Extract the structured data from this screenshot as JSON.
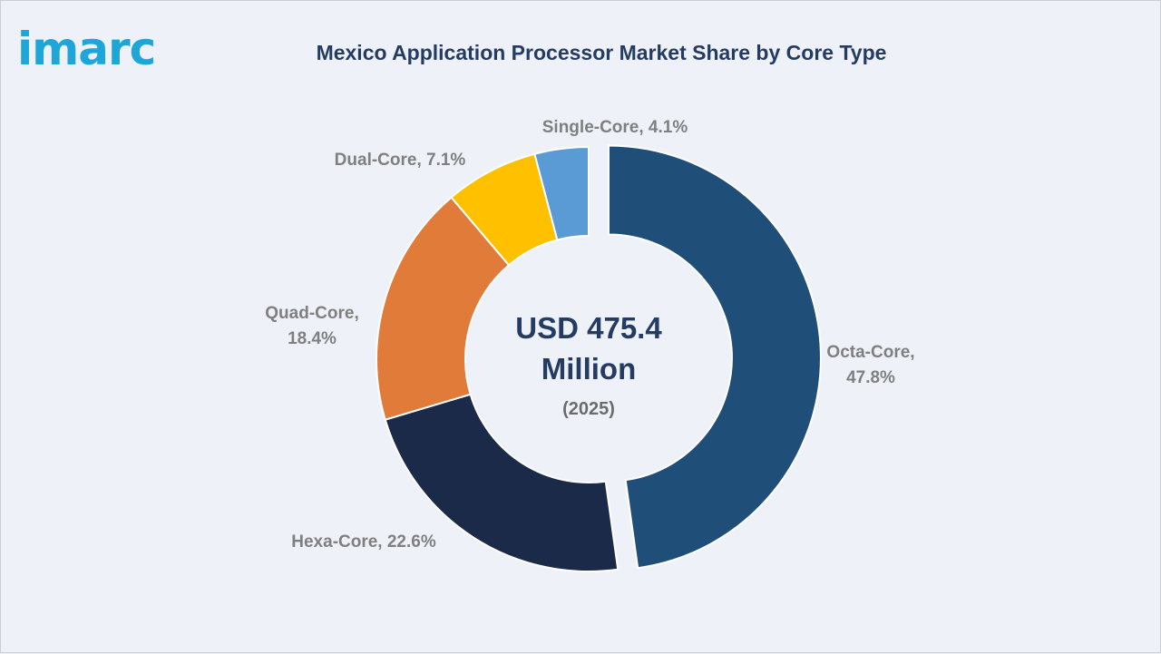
{
  "brand": {
    "logo_text": "imarc",
    "logo_color": "#1fa6d9"
  },
  "chart_data": {
    "type": "pie",
    "variant": "donut",
    "title": "Mexico Application Processor Market Share by Core Type",
    "center_label": {
      "value": "USD 475.4",
      "value_line2": "Million",
      "year": "(2025)"
    },
    "slices": [
      {
        "label": "Octa-Core",
        "value": 47.8,
        "display": "47.8%",
        "color": "#1f4e79",
        "exploded": true
      },
      {
        "label": "Hexa-Core",
        "value": 22.6,
        "display": "22.6%",
        "color": "#1b2a48",
        "exploded": false
      },
      {
        "label": "Quad-Core",
        "value": 18.4,
        "display": "18.4%",
        "color": "#e07b39",
        "exploded": false
      },
      {
        "label": "Dual-Core",
        "value": 7.1,
        "display": "7.1%",
        "color": "#ffc000",
        "exploded": false
      },
      {
        "label": "Single-Core",
        "value": 4.1,
        "display": "4.1%",
        "color": "#5b9bd5",
        "exploded": false
      }
    ]
  }
}
